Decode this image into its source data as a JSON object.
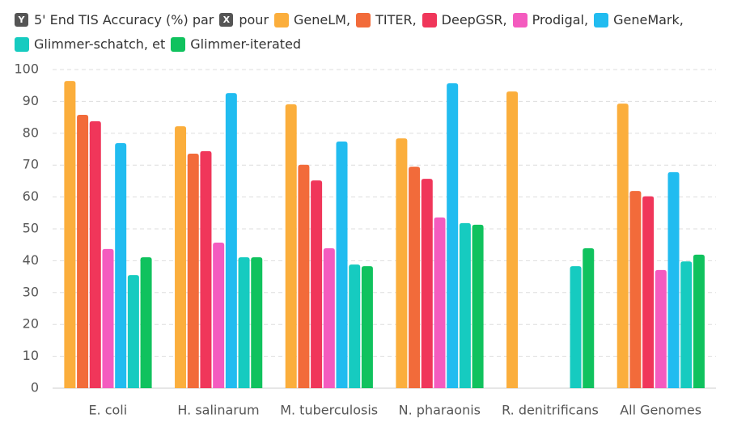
{
  "chart_data": {
    "type": "bar",
    "title_parts": {
      "y_badge": "Y",
      "y_label": "5' End TIS Accuracy (%)",
      "connector": "par",
      "x_badge": "X",
      "x_connector": "pour"
    },
    "legend_joiners": [
      ",",
      ",",
      ",",
      ",",
      ",",
      ", et"
    ],
    "categories": [
      "E. coli",
      "H. salinarum",
      "M. tuberculosis",
      "N. pharaonis",
      "R. denitrificans",
      "All Genomes"
    ],
    "series": [
      {
        "name": "GeneLM",
        "color": "#fbae3c",
        "values": [
          96.4,
          82.2,
          89.1,
          78.4,
          93.1,
          89.3
        ]
      },
      {
        "name": "TITER",
        "color": "#f26b3a",
        "values": [
          85.8,
          73.6,
          70.1,
          69.5,
          null,
          61.9
        ]
      },
      {
        "name": "DeepGSR",
        "color": "#f0365a",
        "values": [
          83.8,
          74.4,
          65.2,
          65.7,
          null,
          60.2
        ]
      },
      {
        "name": "Prodigal",
        "color": "#f45bbf",
        "values": [
          43.7,
          45.7,
          43.9,
          53.6,
          null,
          37.1
        ]
      },
      {
        "name": "GeneMark",
        "color": "#21bcf0",
        "values": [
          76.9,
          92.6,
          77.4,
          95.7,
          null,
          67.8
        ]
      },
      {
        "name": "Glimmer-schatch",
        "color": "#16cbc0",
        "values": [
          35.5,
          41.1,
          38.8,
          51.8,
          38.3,
          39.8
        ]
      },
      {
        "name": "Glimmer-iterated",
        "color": "#10c25e",
        "values": [
          41.1,
          41.1,
          38.3,
          51.3,
          43.9,
          41.9
        ]
      }
    ],
    "ylim": [
      0,
      100
    ],
    "yticks": [
      0,
      10,
      20,
      30,
      40,
      50,
      60,
      70,
      80,
      90,
      100
    ],
    "grid": true
  }
}
